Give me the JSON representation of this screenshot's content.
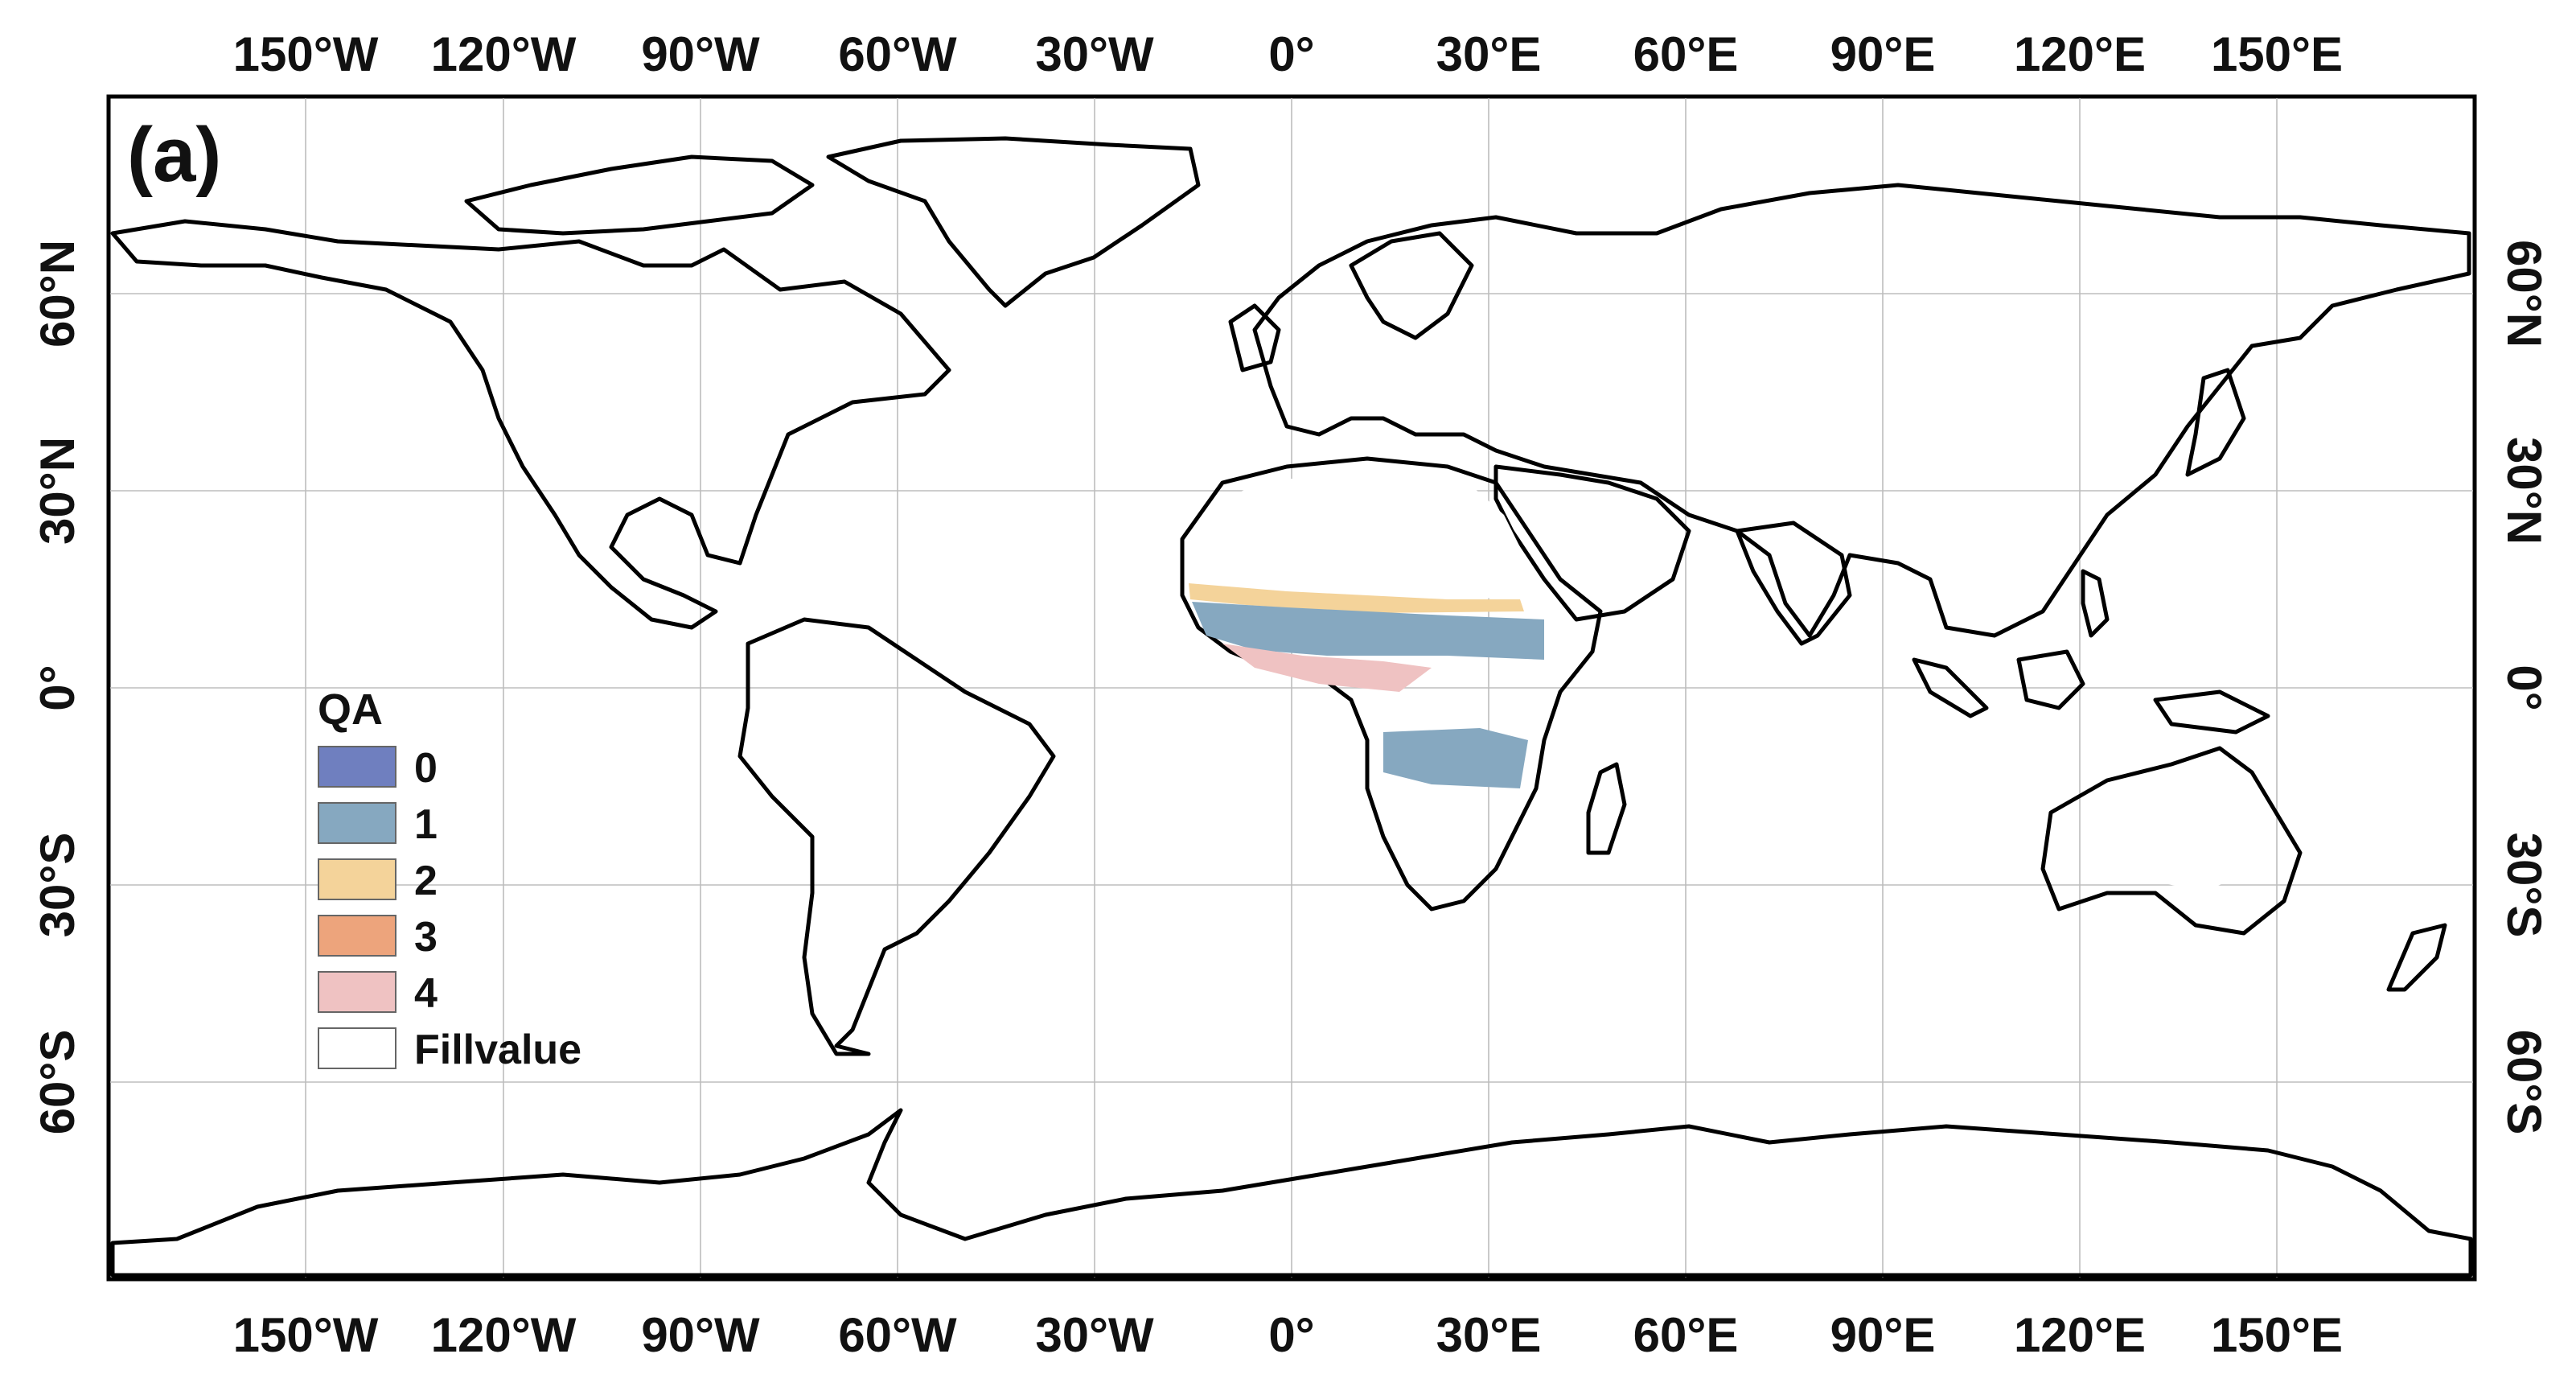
{
  "panel_label": "(a)",
  "lon_labels": [
    "150°W",
    "120°W",
    "90°W",
    "60°W",
    "30°W",
    "0°",
    "30°E",
    "60°E",
    "90°E",
    "120°E",
    "150°E"
  ],
  "lat_labels": [
    "60°N",
    "30°N",
    "0°",
    "30°S",
    "60°S"
  ],
  "legend": {
    "title": "QA",
    "items": [
      {
        "label": "0",
        "color": "#6f7fbf"
      },
      {
        "label": "1",
        "color": "#86a8c0"
      },
      {
        "label": "2",
        "color": "#f4d39a"
      },
      {
        "label": "3",
        "color": "#eda47c"
      },
      {
        "label": "4",
        "color": "#efc2c2"
      },
      {
        "label": "Fillvalue",
        "color": "#ffffff"
      }
    ]
  },
  "colors": {
    "qa0": "#6f7fbf",
    "qa1": "#86a8c0",
    "qa2": "#f4d39a",
    "qa3": "#eda47c",
    "qa4": "#efc2c2",
    "fill": "#ffffff",
    "coastline": "#000000",
    "grid": "#bdbdbd"
  }
}
